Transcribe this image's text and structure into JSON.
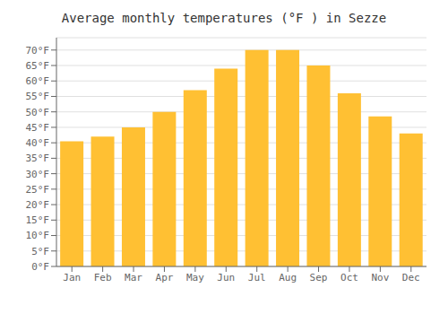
{
  "chart_data": {
    "type": "bar",
    "title": "Average monthly temperatures (°F ) in Sezze",
    "categories": [
      "Jan",
      "Feb",
      "Mar",
      "Apr",
      "May",
      "Jun",
      "Jul",
      "Aug",
      "Sep",
      "Oct",
      "Nov",
      "Dec"
    ],
    "values": [
      40.5,
      42.0,
      45.0,
      50.0,
      57.0,
      64.0,
      70.0,
      70.0,
      65.0,
      56.0,
      48.5,
      43.0
    ],
    "color": "#FFC033",
    "ylim": [
      0,
      74
    ],
    "yticks": [
      {
        "value": 0,
        "label": "0°F"
      },
      {
        "value": 5,
        "label": "5°F"
      },
      {
        "value": 10,
        "label": "10°F"
      },
      {
        "value": 15,
        "label": "15°F"
      },
      {
        "value": 20,
        "label": "20°F"
      },
      {
        "value": 25,
        "label": "25°F"
      },
      {
        "value": 30,
        "label": "30°F"
      },
      {
        "value": 35,
        "label": "35°F"
      },
      {
        "value": 40,
        "label": "40°F"
      },
      {
        "value": 45,
        "label": "45°F"
      },
      {
        "value": 50,
        "label": "50°F"
      },
      {
        "value": 55,
        "label": "55°F"
      },
      {
        "value": 60,
        "label": "60°F"
      },
      {
        "value": 65,
        "label": "65°F"
      },
      {
        "value": 70,
        "label": "70°F"
      }
    ],
    "grid": true
  }
}
